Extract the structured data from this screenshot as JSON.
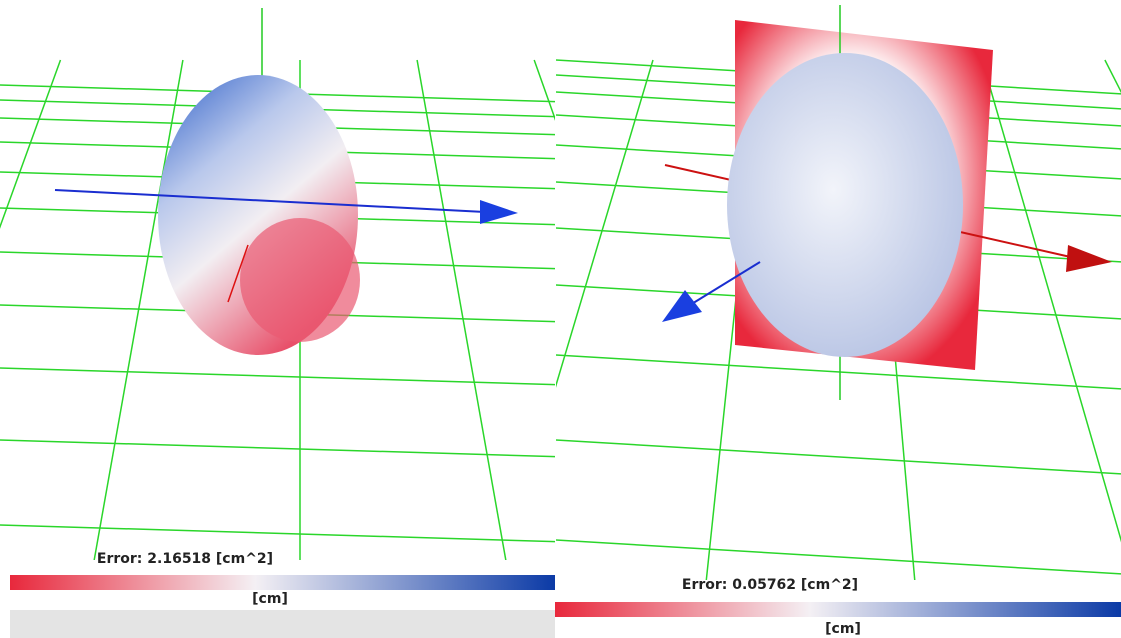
{
  "panels": [
    {
      "error_label": "Error: 2.16518 [cm^2]",
      "unit_label": "[cm]"
    },
    {
      "error_label": "Error: 0.05762 [cm^2]",
      "unit_label": "[cm]"
    }
  ]
}
